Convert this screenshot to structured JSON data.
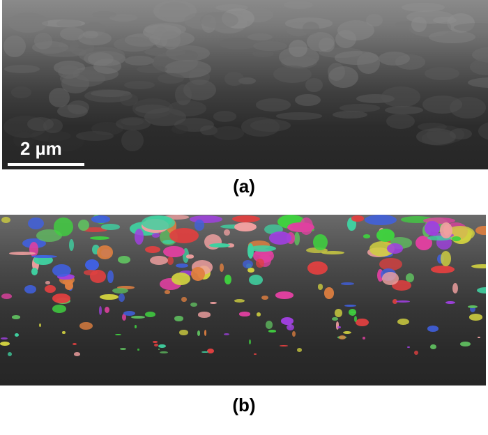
{
  "figure": {
    "panel_a": {
      "label": "(a)",
      "scale_bar_text": "2 µm"
    },
    "panel_b": {
      "label": "(b)"
    }
  },
  "colors": {
    "grain_palette": [
      "#e04040",
      "#40d040",
      "#4060e0",
      "#e08040",
      "#a040e0",
      "#e040a0",
      "#40d0a0",
      "#d0d040",
      "#f0a0a0",
      "#60c060"
    ]
  }
}
